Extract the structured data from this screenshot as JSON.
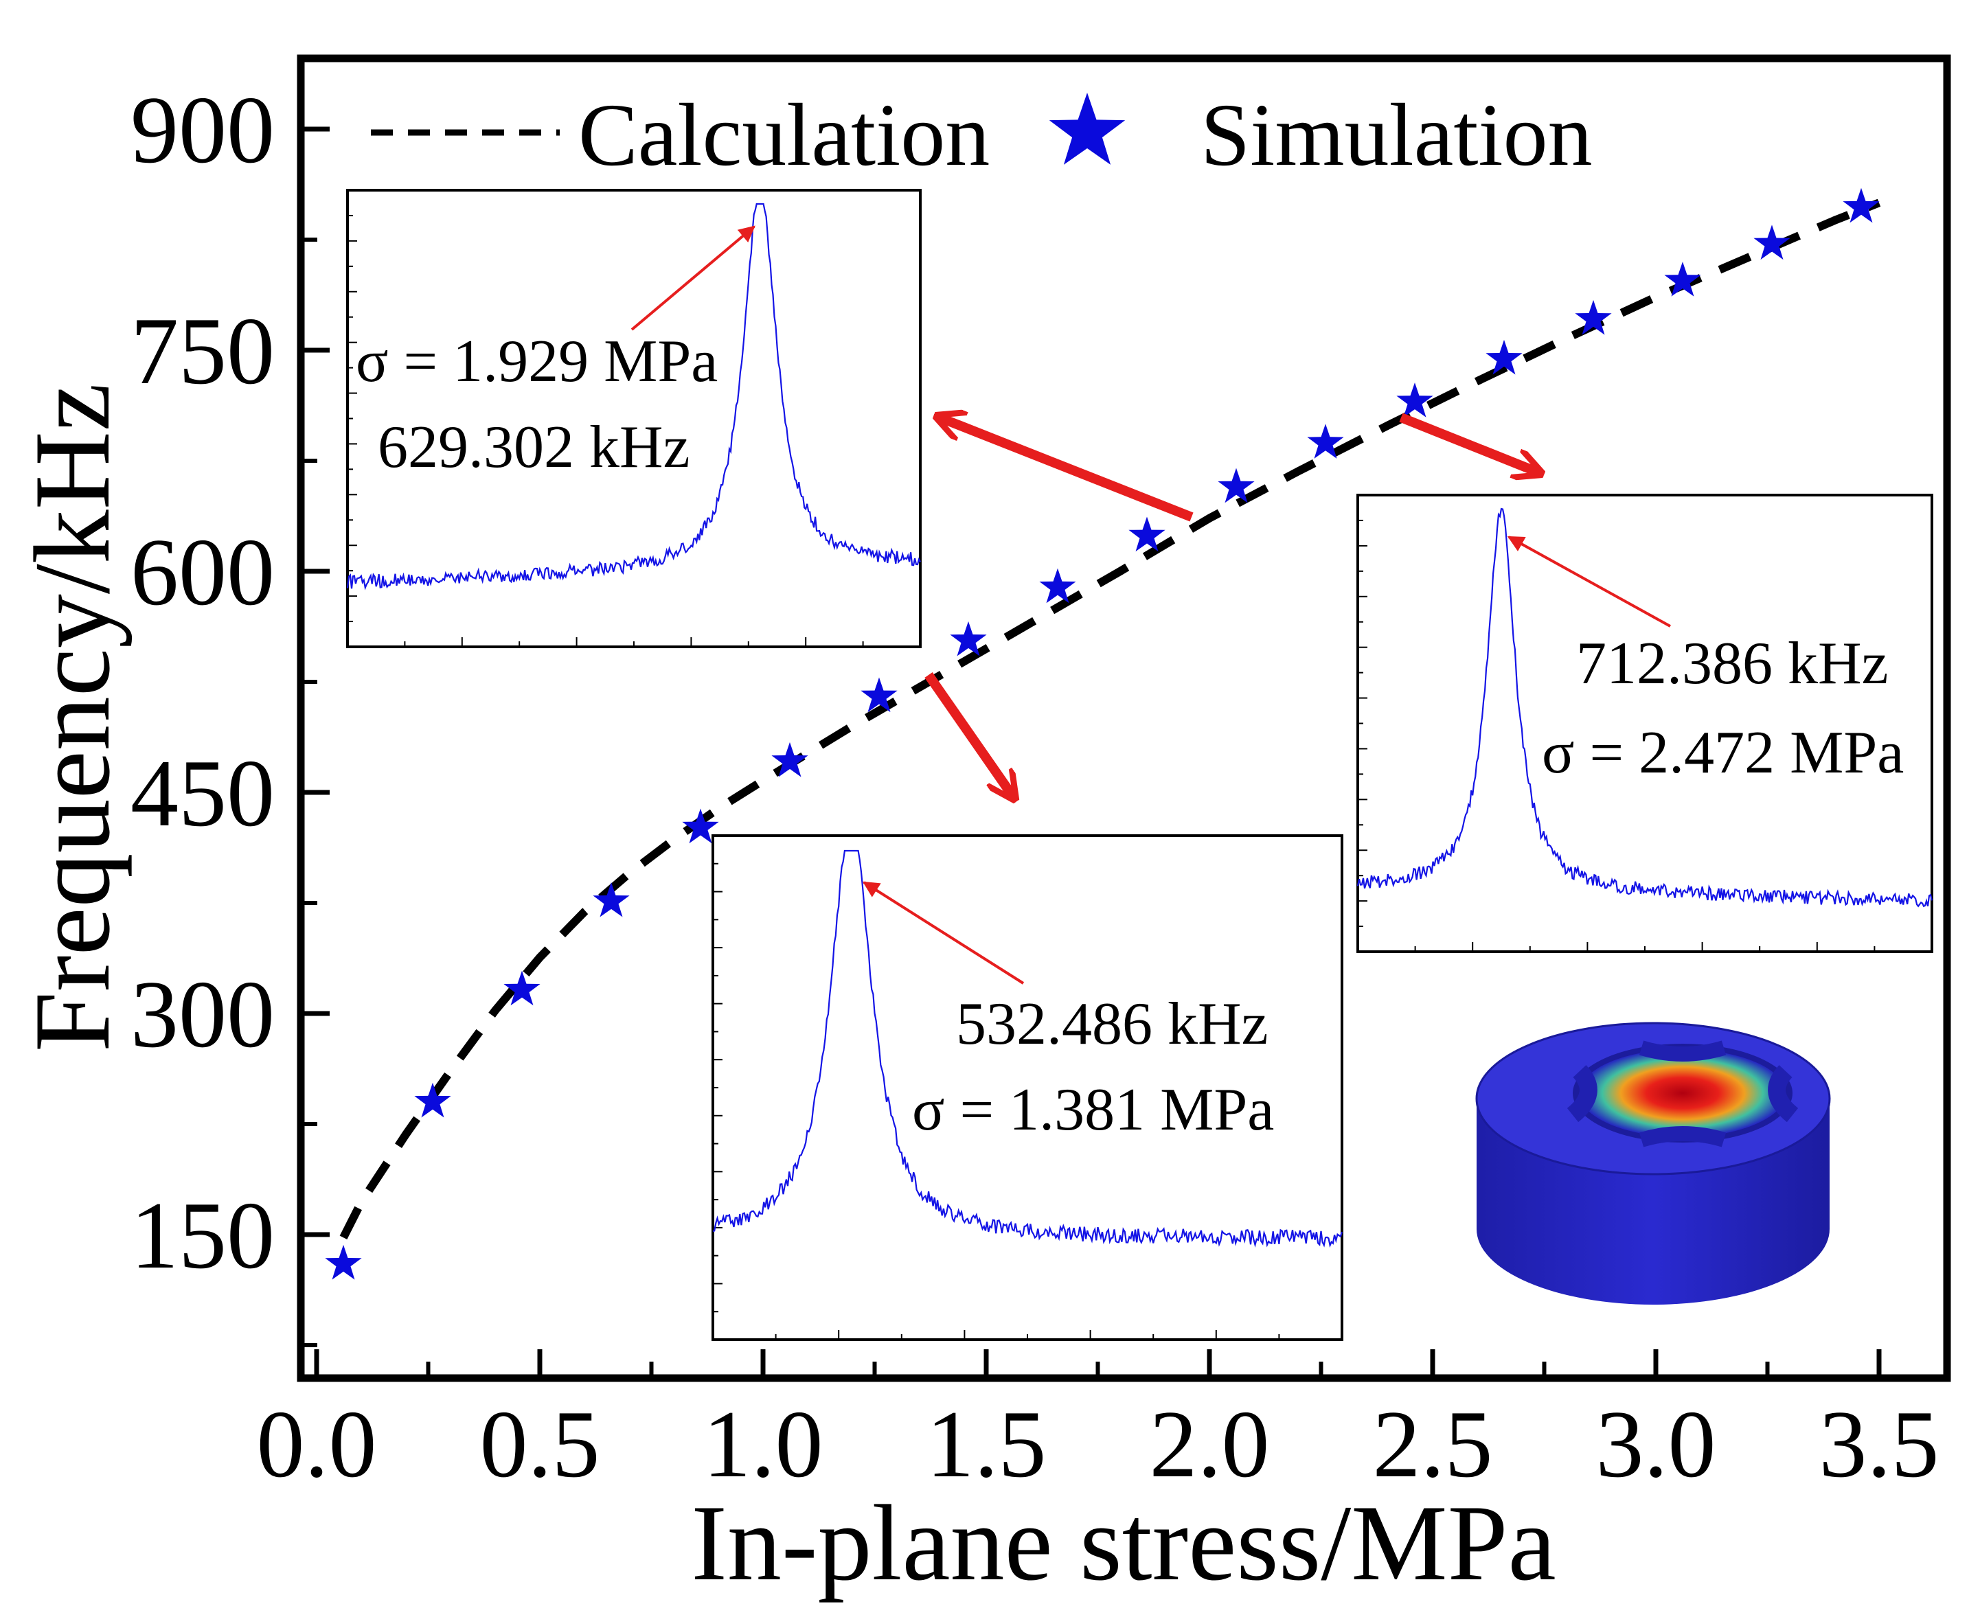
{
  "chart_data": {
    "type": "line",
    "xlabel": "In-plane stress/MPa",
    "ylabel": "Frequency/kHz",
    "xlim": [
      0.0,
      3.6
    ],
    "ylim": [
      50,
      950
    ],
    "xticks": [
      "0.0",
      "0.5",
      "1.0",
      "1.5",
      "2.0",
      "2.5",
      "3.0",
      "3.5"
    ],
    "yticks": [
      "150",
      "300",
      "450",
      "600",
      "750",
      "900"
    ],
    "legend": {
      "position": "top",
      "calculation": "Calculation",
      "simulation": "Simulation"
    },
    "series": [
      {
        "name": "Calculation",
        "style": "dashed-line",
        "color": "#000000",
        "x": [
          0.06,
          0.1,
          0.2,
          0.3,
          0.4,
          0.5,
          0.6,
          0.7,
          0.8,
          0.9,
          1.0,
          1.2,
          1.4,
          1.6,
          1.8,
          2.0,
          2.2,
          2.4,
          2.6,
          2.8,
          3.0,
          3.2,
          3.4,
          3.5
        ],
        "y": [
          148,
          172,
          218,
          261,
          302,
          338,
          369,
          395,
          418,
          439,
          458,
          495,
          530,
          565,
          600,
          636,
          668,
          699,
          729,
          758,
          786,
          812,
          838,
          850
        ]
      },
      {
        "name": "Simulation",
        "style": "star-marker",
        "color": "#0a0adc",
        "x": [
          0.06,
          0.26,
          0.46,
          0.66,
          0.86,
          1.06,
          1.26,
          1.46,
          1.66,
          1.86,
          2.06,
          2.26,
          2.46,
          2.66,
          2.86,
          3.06,
          3.26,
          3.46
        ],
        "y": [
          130,
          240,
          316,
          376,
          426,
          471,
          515,
          553,
          589,
          624,
          657,
          687,
          715,
          744,
          771,
          797,
          822,
          847
        ]
      }
    ],
    "annotations": [
      {
        "frequency": "629.302 kHz",
        "stress": "σ = 1.929 MPa"
      },
      {
        "frequency": "532.486 kHz",
        "stress": "σ = 1.381 MPa"
      },
      {
        "frequency": "712.386 kHz",
        "stress": "σ = 2.472 MPa"
      }
    ],
    "inset_spectra": [
      {
        "peak_position": 0.72,
        "baseline": 0.14,
        "end_level": 0.18,
        "width": 0.035
      },
      {
        "peak_position": 0.22,
        "baseline": 0.2,
        "end_level": 0.2,
        "width": 0.04
      },
      {
        "peak_position": 0.25,
        "baseline": 0.14,
        "end_level": 0.11,
        "width": 0.03
      }
    ]
  },
  "colors": {
    "simulation": "#0a0adc",
    "arrow": "#e61e1e",
    "inset_trace": "#1414e6",
    "cylinder": "#2626c8"
  }
}
